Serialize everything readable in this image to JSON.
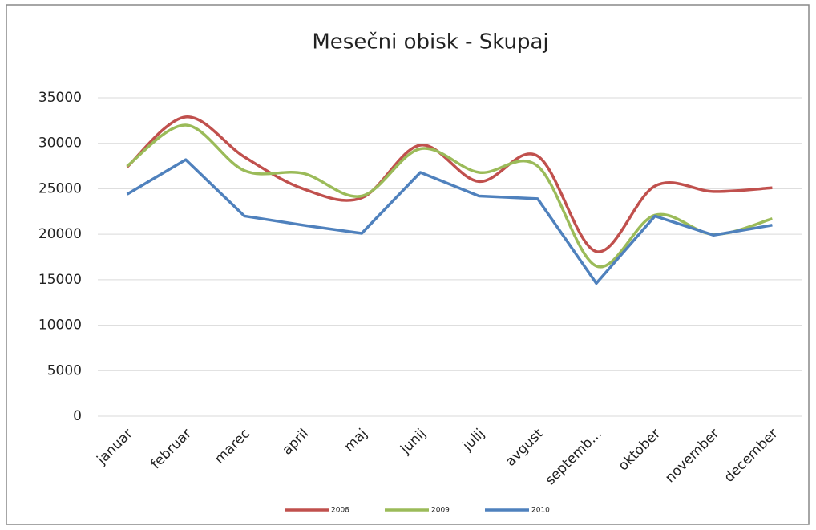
{
  "chart_data": {
    "type": "line",
    "title": "Mesečni obisk - Skupaj",
    "categories": [
      "januar",
      "februar",
      "marec",
      "april",
      "maj",
      "junij",
      "julij",
      "avgust",
      "septemb...",
      "oktober",
      "november",
      "december"
    ],
    "series": [
      {
        "name": "2008",
        "color": "#c0504d",
        "smooth": true,
        "values": [
          27400,
          32900,
          28500,
          25000,
          24000,
          29800,
          25800,
          28600,
          18100,
          25300,
          24700,
          25100
        ]
      },
      {
        "name": "2009",
        "color": "#9bbb59",
        "smooth": true,
        "values": [
          27500,
          32000,
          27000,
          26700,
          24200,
          29400,
          26800,
          27500,
          16500,
          22100,
          20000,
          21700
        ]
      },
      {
        "name": "2010",
        "color": "#4f81bd",
        "smooth": false,
        "values": [
          24400,
          28200,
          22000,
          21000,
          20100,
          26800,
          24200,
          23900,
          14600,
          22000,
          19900,
          21000
        ]
      }
    ],
    "ylim": [
      0,
      35000
    ],
    "yticks": [
      0,
      5000,
      10000,
      15000,
      20000,
      25000,
      30000,
      35000
    ],
    "grid": true,
    "legend": "bottom"
  }
}
